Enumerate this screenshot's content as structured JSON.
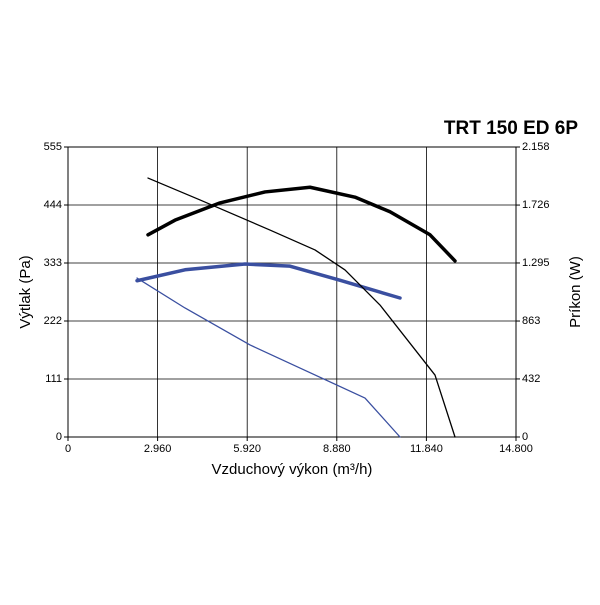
{
  "chart_data": {
    "type": "line",
    "title": "TRT 150 ED 6P",
    "x_label": "Vzduchový výkon (m³/h)",
    "y_label": "Výtlak (Pa)",
    "y2_label": "Príkon (W)",
    "xlim": [
      0,
      14800
    ],
    "xticks": [
      0,
      {
        "value": 2960,
        "label": "2.960"
      },
      {
        "value": 5920,
        "label": "5.920"
      },
      {
        "value": 8880,
        "label": "8.880"
      },
      {
        "value": 11840,
        "label": "11.840"
      },
      {
        "value": 14800,
        "label": "14.800"
      }
    ],
    "ylim": [
      0,
      555
    ],
    "yticks": [
      0,
      111,
      222,
      333,
      444,
      555
    ],
    "y2lim": [
      0,
      2158
    ],
    "y2ticks": [
      0,
      432,
      863,
      {
        "value": 1295,
        "label": "1.295"
      },
      {
        "value": 1726,
        "label": "1.726"
      },
      {
        "value": 2158,
        "label": "2.158"
      }
    ],
    "grid": true,
    "series": [
      {
        "color": "#000000",
        "width": 3.5,
        "x": [
          2643,
          3535,
          5021,
          6508,
          7995,
          9481,
          10637,
          11959,
          12785
        ],
        "values": [
          387,
          415,
          448,
          469,
          478,
          459,
          431,
          387,
          337
        ]
      },
      {
        "color": "#3a4fa0",
        "width": 3.5,
        "x": [
          2280,
          3865,
          5848,
          7334,
          8979,
          10968
        ],
        "values": [
          299,
          320,
          331,
          327,
          300,
          266
        ]
      },
      {
        "color": "#000000",
        "width": 1.3,
        "axis": "y2",
        "x": [
          2643,
          4361,
          6673,
          8160,
          9151,
          10307,
          12124,
          12785
        ],
        "values": [
          1927,
          1764,
          1540,
          1392,
          1243,
          982,
          461,
          0
        ]
      },
      {
        "color": "#3a4fa0",
        "width": 1.3,
        "axis": "y2",
        "x": [
          2280,
          3865,
          6013,
          7665,
          9812,
          10968
        ],
        "values": [
          1183,
          960,
          685,
          513,
          290,
          0
        ]
      }
    ]
  }
}
